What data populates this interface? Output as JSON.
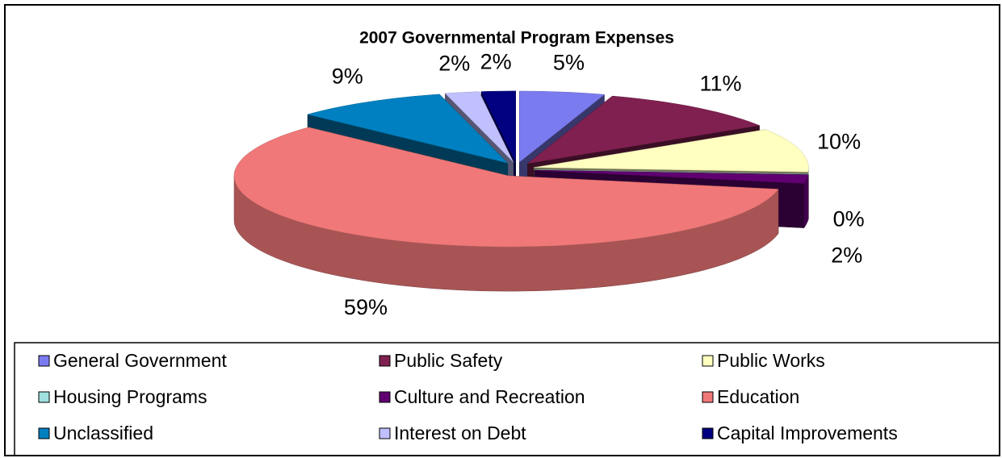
{
  "chart_data": {
    "type": "pie3d",
    "title": "2007 Governmental  Program Expenses",
    "categories": [
      "General Government",
      "Public Safety",
      "Public Works",
      "Housing Programs",
      "Culture and Recreation",
      "Education",
      "Unclassified",
      "Interest on Debt",
      "Capital Improvements"
    ],
    "values": [
      5,
      11,
      10,
      0,
      2,
      59,
      9,
      2,
      2
    ],
    "value_labels": [
      "5%",
      "11%",
      "10%",
      "0%",
      "2%",
      "59%",
      "9%",
      "2%",
      "2%"
    ],
    "colors": [
      "#7b7bf0",
      "#802050",
      "#ffffc0",
      "#a0e0e0",
      "#600070",
      "#f07878",
      "#0080c0",
      "#c0c0ff",
      "#000080"
    ],
    "legend": "bottom"
  }
}
